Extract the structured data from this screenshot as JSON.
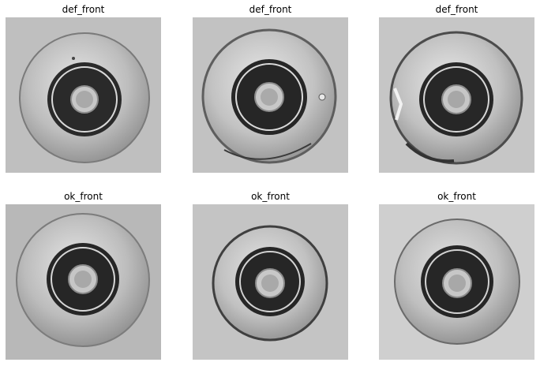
{
  "figure": {
    "panels": [
      {
        "title": "def_front",
        "label": "defective",
        "outer_shade": "#9c9c9c",
        "background_shade": "#bfbfbf"
      },
      {
        "title": "def_front",
        "label": "defective",
        "outer_shade": "#a6a6a6",
        "background_shade": "#c2c2c2"
      },
      {
        "title": "def_front",
        "label": "defective",
        "outer_shade": "#a0a0a0",
        "background_shade": "#c6c6c6"
      },
      {
        "title": "ok_front",
        "label": "ok",
        "outer_shade": "#9e9e9e",
        "background_shade": "#b8b8b8"
      },
      {
        "title": "ok_front",
        "label": "ok",
        "outer_shade": "#a3a3a3",
        "background_shade": "#c4c4c4"
      },
      {
        "title": "ok_front",
        "label": "ok",
        "outer_shade": "#a1a1a1",
        "background_shade": "#cfcfcf"
      }
    ]
  }
}
